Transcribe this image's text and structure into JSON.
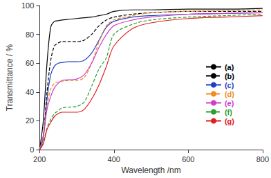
{
  "chart_data": {
    "type": "line",
    "x_label": "Wavelength /nm",
    "y_label": "Transmittance / %",
    "x": [
      200,
      210,
      220,
      230,
      240,
      250,
      260,
      280,
      300,
      320,
      340,
      360,
      380,
      400,
      450,
      500,
      600,
      700,
      800
    ],
    "xlim": [
      200,
      800
    ],
    "xticks": [
      200,
      400,
      600,
      800
    ],
    "ylim": [
      0,
      100
    ],
    "yticks": [
      0,
      20,
      40,
      60,
      80,
      100
    ],
    "grid": false,
    "legend": "right",
    "series": [
      {
        "name": "(a)",
        "color": "#000000",
        "line_style": "solid",
        "values": [
          0,
          20,
          60,
          85,
          89,
          89.5,
          90,
          90.5,
          91,
          91.5,
          92,
          93,
          94,
          96,
          97,
          97,
          97.5,
          97.5,
          98
        ]
      },
      {
        "name": "(b)",
        "color": "#000000",
        "line_style": "dashed",
        "values": [
          0,
          10,
          40,
          62,
          72,
          74,
          75,
          75,
          75,
          76,
          80,
          86,
          90,
          92,
          94,
          95,
          96,
          96,
          96
        ]
      },
      {
        "name": "(c)",
        "color": "#1f3fbf",
        "line_style": "solid",
        "values": [
          0,
          8,
          35,
          52,
          58,
          60,
          60.5,
          61,
          61,
          62,
          67,
          76,
          85,
          89,
          92,
          93,
          94,
          94.5,
          95
        ]
      },
      {
        "name": "(d)",
        "color": "#f08c1e",
        "line_style": "dashed",
        "values": [
          0,
          10,
          30,
          42,
          46,
          47,
          47.5,
          48,
          48,
          50,
          60,
          75,
          86,
          90,
          93,
          95,
          96,
          96.5,
          97
        ]
      },
      {
        "name": "(e)",
        "color": "#d23cc8",
        "line_style": "solid",
        "values": [
          0,
          9,
          28,
          37,
          43,
          46,
          48,
          48.5,
          49,
          52,
          60,
          71,
          80,
          86,
          90,
          92,
          94,
          94.5,
          95
        ]
      },
      {
        "name": "(f)",
        "color": "#2ca02c",
        "line_style": "dashed",
        "values": [
          0,
          5,
          15,
          21,
          25,
          27,
          29,
          29.5,
          30,
          33,
          44,
          56,
          64,
          80,
          87,
          90,
          92,
          93,
          94
        ]
      },
      {
        "name": "(g)",
        "color": "#e02020",
        "line_style": "solid",
        "values": [
          0,
          4,
          14,
          19,
          23,
          25,
          26,
          26,
          26,
          28,
          35,
          45,
          58,
          72,
          84,
          88,
          91,
          92,
          93
        ]
      }
    ]
  }
}
